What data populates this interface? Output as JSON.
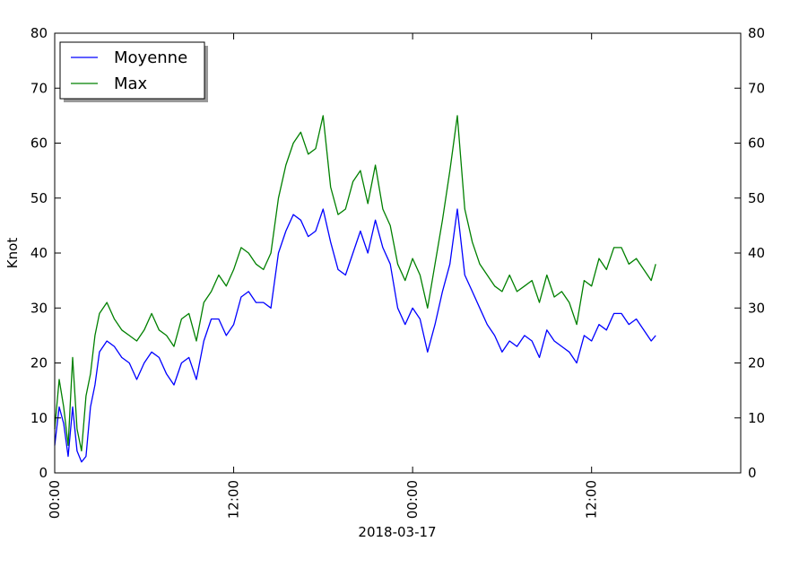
{
  "chart_data": {
    "type": "line",
    "xlabel": "2018-03-17",
    "ylabel": "Knot",
    "x_unit": "hours since 2018-03-17 00:00",
    "xlim_hours": [
      0,
      46
    ],
    "ylim": [
      0,
      80
    ],
    "y_ticks": [
      0,
      10,
      20,
      30,
      40,
      50,
      60,
      70,
      80
    ],
    "x_ticks": [
      {
        "hour": 0,
        "label": "00:00"
      },
      {
        "hour": 12,
        "label": "12:00"
      },
      {
        "hour": 24,
        "label": "00:00"
      },
      {
        "hour": 36,
        "label": "12:00"
      }
    ],
    "grid": false,
    "legend_position": "top-left",
    "series": [
      {
        "name": "Moyenne",
        "color": "#0000ff",
        "x": [
          0,
          0.3,
          0.6,
          0.9,
          1.2,
          1.5,
          1.8,
          2.1,
          2.4,
          2.7,
          3,
          3.5,
          4,
          4.5,
          5,
          5.5,
          6,
          6.5,
          7,
          7.5,
          8,
          8.5,
          9,
          9.5,
          10,
          10.5,
          11,
          11.5,
          12,
          12.5,
          13,
          13.5,
          14,
          14.5,
          15,
          15.5,
          16,
          16.5,
          17,
          17.5,
          18,
          18.5,
          19,
          19.5,
          20,
          20.5,
          21,
          21.5,
          22,
          22.5,
          23,
          23.5,
          24,
          24.5,
          25,
          25.5,
          26,
          26.5,
          27,
          27.5,
          28,
          28.5,
          29,
          29.5,
          30,
          30.5,
          31,
          31.5,
          32,
          32.5,
          33,
          33.5,
          34,
          34.5,
          35,
          35.5,
          36,
          36.5,
          37,
          37.5,
          38,
          38.5,
          39,
          39.5,
          40,
          40.3
        ],
        "y": [
          5,
          12,
          9,
          3,
          12,
          4,
          2,
          3,
          12,
          16,
          22,
          24,
          23,
          21,
          20,
          17,
          20,
          22,
          21,
          18,
          16,
          20,
          21,
          17,
          24,
          28,
          28,
          25,
          27,
          32,
          33,
          31,
          31,
          30,
          40,
          44,
          47,
          46,
          43,
          44,
          48,
          42,
          37,
          36,
          40,
          44,
          40,
          46,
          41,
          38,
          30,
          27,
          30,
          28,
          22,
          27,
          33,
          38,
          48,
          36,
          33,
          30,
          27,
          25,
          22,
          24,
          23,
          25,
          24,
          21,
          26,
          24,
          23,
          22,
          20,
          25,
          24,
          27,
          26,
          29,
          29,
          27,
          28,
          26,
          24,
          25
        ]
      },
      {
        "name": "Max",
        "color": "#008000",
        "x": [
          0,
          0.3,
          0.6,
          0.9,
          1.2,
          1.5,
          1.8,
          2.1,
          2.4,
          2.7,
          3,
          3.5,
          4,
          4.5,
          5,
          5.5,
          6,
          6.5,
          7,
          7.5,
          8,
          8.5,
          9,
          9.5,
          10,
          10.5,
          11,
          11.5,
          12,
          12.5,
          13,
          13.5,
          14,
          14.5,
          15,
          15.5,
          16,
          16.5,
          17,
          17.5,
          18,
          18.5,
          19,
          19.5,
          20,
          20.5,
          21,
          21.5,
          22,
          22.5,
          23,
          23.5,
          24,
          24.5,
          25,
          25.5,
          26,
          26.5,
          27,
          27.5,
          28,
          28.5,
          29,
          29.5,
          30,
          30.5,
          31,
          31.5,
          32,
          32.5,
          33,
          33.5,
          34,
          34.5,
          35,
          35.5,
          36,
          36.5,
          37,
          37.5,
          38,
          38.5,
          39,
          39.5,
          40,
          40.3
        ],
        "y": [
          8,
          17,
          12,
          5,
          21,
          8,
          4,
          14,
          18,
          25,
          29,
          31,
          28,
          26,
          25,
          24,
          26,
          29,
          26,
          25,
          23,
          28,
          29,
          24,
          31,
          33,
          36,
          34,
          37,
          41,
          40,
          38,
          37,
          40,
          50,
          56,
          60,
          62,
          58,
          59,
          65,
          52,
          47,
          48,
          53,
          55,
          49,
          56,
          48,
          45,
          38,
          35,
          39,
          36,
          30,
          38,
          46,
          55,
          65,
          48,
          42,
          38,
          36,
          34,
          33,
          36,
          33,
          34,
          35,
          31,
          36,
          32,
          33,
          31,
          27,
          35,
          34,
          39,
          37,
          41,
          41,
          38,
          39,
          37,
          35,
          38
        ]
      }
    ]
  }
}
